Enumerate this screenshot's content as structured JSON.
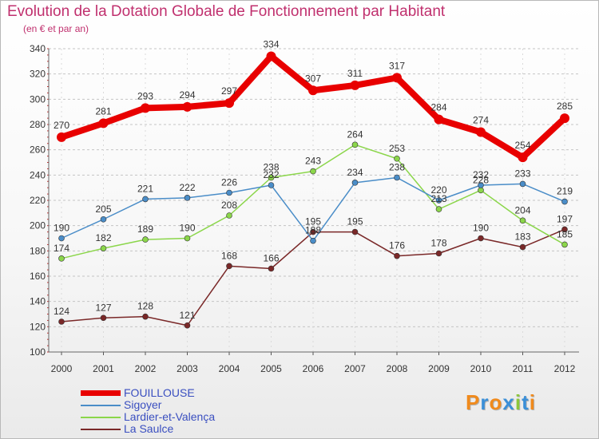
{
  "header": {
    "title": "Evolution de la Dotation Globale de Fonctionnement par Habitant",
    "subtitle": "(en € et par an)"
  },
  "chart_data": {
    "type": "line",
    "title": "Evolution de la Dotation Globale de Fonctionnement par Habitant",
    "subtitle": "(en € et par an)",
    "xlabel": "",
    "ylabel": "",
    "ylim": [
      100,
      340
    ],
    "yticks": [
      100,
      120,
      140,
      160,
      180,
      200,
      220,
      240,
      260,
      280,
      300,
      320,
      340
    ],
    "x": [
      "2000",
      "2001",
      "2002",
      "2003",
      "2004",
      "2005",
      "2006",
      "2007",
      "2008",
      "2009",
      "2010",
      "2011",
      "2012"
    ],
    "grid": "horizontal dashed",
    "legend_position": "bottom-left",
    "series": [
      {
        "name": "FOUILLOUSE",
        "color": "#e80000",
        "values": [
          270,
          281,
          293,
          294,
          297,
          334,
          307,
          311,
          317,
          284,
          274,
          254,
          285
        ]
      },
      {
        "name": "Sigoyer",
        "color": "#4a8dc8",
        "values": [
          190,
          205,
          221,
          222,
          226,
          232,
          188,
          234,
          238,
          220,
          232,
          233,
          219
        ]
      },
      {
        "name": "Lardier-et-Valença",
        "color": "#8bd64a",
        "values": [
          174,
          182,
          189,
          190,
          208,
          238,
          243,
          264,
          253,
          213,
          228,
          204,
          185
        ]
      },
      {
        "name": "La Saulce",
        "color": "#7a2828",
        "values": [
          124,
          127,
          128,
          121,
          168,
          166,
          195,
          195,
          176,
          178,
          190,
          183,
          197
        ]
      }
    ]
  },
  "logo": {
    "letters": [
      "P",
      "r",
      "o",
      "x",
      "i",
      "t",
      "i"
    ],
    "colors": [
      "#f08a1c",
      "#3a8fd8",
      "#f08a1c",
      "#3a8fd8",
      "#8bc63a",
      "#3a8fd8",
      "#f08a1c"
    ]
  }
}
